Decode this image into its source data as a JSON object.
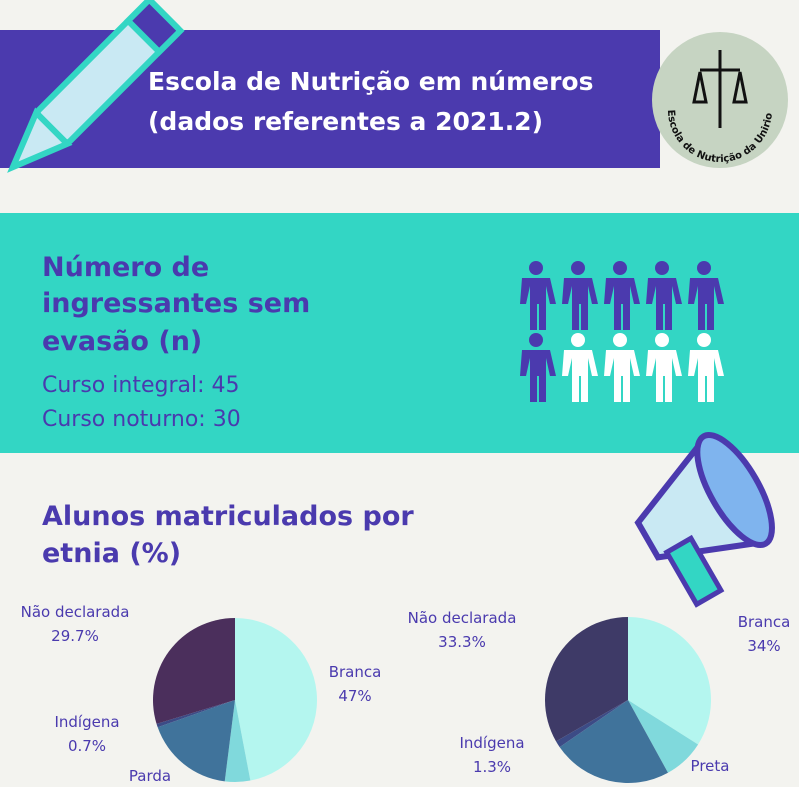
{
  "header": {
    "title_lines": [
      "Escola de Nutrição em números",
      "(dados referentes a 2021.2)"
    ],
    "logo_text": "Escola de Nutrição da Unirio"
  },
  "section_ingressantes": {
    "heading_lines": [
      "Número de",
      "ingressantes sem",
      "evasão (n)"
    ],
    "lines": [
      "Curso integral: 45",
      "Curso noturno: 30"
    ]
  },
  "section_etnia": {
    "heading_lines": [
      "Alunos matriculados por",
      "etnia (%)"
    ]
  },
  "chart_data": [
    {
      "type": "pie",
      "categories": [
        "Branca",
        null,
        "Parda",
        "Indígena",
        "Não declarada"
      ],
      "values": [
        47,
        5,
        17.6,
        0.7,
        29.7
      ],
      "value_labels": [
        "47%",
        null,
        null,
        "0.7%",
        "29.7%"
      ],
      "colors": [
        "#b4f6ef",
        "#80d9dc",
        "#40739b",
        "#3c4b86",
        "#4b2f5c"
      ]
    },
    {
      "type": "pie",
      "categories": [
        "Branca",
        "Preta",
        null,
        "Indígena",
        "Não declarada"
      ],
      "values": [
        34,
        8,
        23.4,
        1.3,
        33.3
      ],
      "value_labels": [
        "34%",
        null,
        null,
        "1.3%",
        "33.3%"
      ],
      "colors": [
        "#b4f6ef",
        "#80d9dc",
        "#40739b",
        "#3c4b86",
        "#3e3a67"
      ]
    }
  ]
}
